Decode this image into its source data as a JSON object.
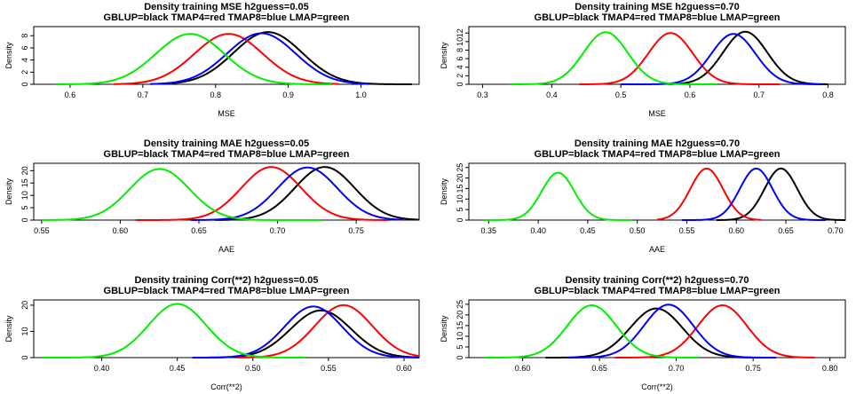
{
  "chart_data": [
    {
      "type": "line",
      "title": "Density training MSE h2guess=0.05",
      "subtitle": "GBLUP=black TMAP4=red TMAP8=blue LMAP=green",
      "xlabel": "MSE",
      "ylabel": "Density",
      "xlim": [
        0.55,
        1.08
      ],
      "ylim": [
        0,
        9.5
      ],
      "xticks": [
        0.6,
        0.7,
        0.8,
        0.9,
        1.0
      ],
      "xtick_labels": [
        "0.6",
        "0.7",
        "0.8",
        "0.9",
        "1.0"
      ],
      "yticks": [
        0,
        2,
        4,
        6,
        8
      ],
      "ytick_labels": [
        "0",
        "2",
        "4",
        "6",
        "8"
      ],
      "series": [
        {
          "name": "GBLUP",
          "color": "#000000",
          "peak_x": 0.872,
          "peak_y": 8.6,
          "sd": 0.047,
          "range": [
            0.74,
            1.07
          ]
        },
        {
          "name": "TMAP4",
          "color": "#ff0000",
          "peak_x": 0.818,
          "peak_y": 8.3,
          "sd": 0.047,
          "range": [
            0.66,
            0.97
          ]
        },
        {
          "name": "TMAP8",
          "color": "#0000ff",
          "peak_x": 0.863,
          "peak_y": 8.4,
          "sd": 0.047,
          "range": [
            0.71,
            1.01
          ]
        },
        {
          "name": "LMAP",
          "color": "#00ee00",
          "peak_x": 0.765,
          "peak_y": 8.3,
          "sd": 0.047,
          "range": [
            0.58,
            0.96
          ]
        }
      ]
    },
    {
      "type": "line",
      "title": "Density training MSE h2guess=0.70",
      "subtitle": "GBLUP=black TMAP4=red TMAP8=blue LMAP=green",
      "xlabel": "MSE",
      "ylabel": "Density",
      "xlim": [
        0.28,
        0.825
      ],
      "ylim": [
        0,
        13.5
      ],
      "xticks": [
        0.3,
        0.4,
        0.5,
        0.6,
        0.7,
        0.8
      ],
      "xtick_labels": [
        "0.3",
        "0.4",
        "0.5",
        "0.6",
        "0.7",
        "0.8"
      ],
      "yticks": [
        0,
        2,
        4,
        6,
        8,
        10,
        12
      ],
      "ytick_labels": [
        "0",
        "2",
        "4",
        "6",
        "8",
        "10",
        "12"
      ],
      "series": [
        {
          "name": "GBLUP",
          "color": "#000000",
          "peak_x": 0.68,
          "peak_y": 12.3,
          "sd": 0.032,
          "range": [
            0.57,
            0.8
          ]
        },
        {
          "name": "TMAP4",
          "color": "#ff0000",
          "peak_x": 0.572,
          "peak_y": 12.0,
          "sd": 0.032,
          "range": [
            0.44,
            0.73
          ]
        },
        {
          "name": "TMAP8",
          "color": "#0000ff",
          "peak_x": 0.663,
          "peak_y": 11.8,
          "sd": 0.032,
          "range": [
            0.5,
            0.79
          ]
        },
        {
          "name": "LMAP",
          "color": "#00ee00",
          "peak_x": 0.478,
          "peak_y": 12.2,
          "sd": 0.032,
          "range": [
            0.34,
            0.64
          ]
        }
      ]
    },
    {
      "type": "line",
      "title": "Density training MAE h2guess=0.05",
      "subtitle": "GBLUP=black TMAP4=red TMAP8=blue LMAP=green",
      "xlabel": "AAE",
      "ylabel": "Density",
      "xlim": [
        0.545,
        0.79
      ],
      "ylim": [
        0,
        23
      ],
      "xticks": [
        0.55,
        0.6,
        0.65,
        0.7,
        0.75
      ],
      "xtick_labels": [
        "0.55",
        "0.60",
        "0.65",
        "0.70",
        "0.75"
      ],
      "yticks": [
        0,
        5,
        10,
        15,
        20
      ],
      "ytick_labels": [
        "0",
        "5",
        "10",
        "15",
        "20"
      ],
      "series": [
        {
          "name": "GBLUP",
          "color": "#000000",
          "peak_x": 0.73,
          "peak_y": 21.5,
          "sd": 0.019,
          "range": [
            0.66,
            0.79
          ]
        },
        {
          "name": "TMAP4",
          "color": "#ff0000",
          "peak_x": 0.696,
          "peak_y": 21.5,
          "sd": 0.019,
          "range": [
            0.61,
            0.77
          ]
        },
        {
          "name": "TMAP8",
          "color": "#0000ff",
          "peak_x": 0.719,
          "peak_y": 21.3,
          "sd": 0.019,
          "range": [
            0.645,
            0.78
          ]
        },
        {
          "name": "LMAP",
          "color": "#00ee00",
          "peak_x": 0.625,
          "peak_y": 20.7,
          "sd": 0.019,
          "range": [
            0.55,
            0.728
          ]
        }
      ]
    },
    {
      "type": "line",
      "title": "Density training MAE h2guess=0.70",
      "subtitle": "GBLUP=black TMAP4=red TMAP8=blue LMAP=green",
      "xlabel": "AAE",
      "ylabel": "Density",
      "xlim": [
        0.33,
        0.71
      ],
      "ylim": [
        0,
        27
      ],
      "xticks": [
        0.35,
        0.4,
        0.45,
        0.5,
        0.55,
        0.6,
        0.65,
        0.7
      ],
      "xtick_labels": [
        "0.35",
        "0.40",
        "0.45",
        "0.50",
        "0.55",
        "0.60",
        "0.65",
        "0.70"
      ],
      "yticks": [
        0,
        5,
        10,
        15,
        20,
        25
      ],
      "ytick_labels": [
        "0",
        "5",
        "10",
        "15",
        "20",
        "25"
      ],
      "series": [
        {
          "name": "GBLUP",
          "color": "#000000",
          "peak_x": 0.645,
          "peak_y": 24.5,
          "sd": 0.0165,
          "range": [
            0.58,
            0.71
          ]
        },
        {
          "name": "TMAP4",
          "color": "#ff0000",
          "peak_x": 0.57,
          "peak_y": 24.5,
          "sd": 0.0165,
          "range": [
            0.52,
            0.625
          ]
        },
        {
          "name": "TMAP8",
          "color": "#0000ff",
          "peak_x": 0.62,
          "peak_y": 24.5,
          "sd": 0.0165,
          "range": [
            0.545,
            0.69
          ]
        },
        {
          "name": "LMAP",
          "color": "#00ee00",
          "peak_x": 0.42,
          "peak_y": 22.5,
          "sd": 0.0165,
          "range": [
            0.345,
            0.495
          ]
        }
      ]
    },
    {
      "type": "line",
      "title": "Density training Corr(**2) h2guess=0.05",
      "subtitle": "GBLUP=black TMAP4=red TMAP8=blue LMAP=green",
      "xlabel": "Corr(**2)",
      "ylabel": "Density",
      "xlim": [
        0.355,
        0.61
      ],
      "ylim": [
        0,
        22
      ],
      "xticks": [
        0.4,
        0.45,
        0.5,
        0.55,
        0.6
      ],
      "xtick_labels": [
        "0.40",
        "0.45",
        "0.50",
        "0.55",
        "0.60"
      ],
      "yticks": [
        0,
        10,
        20
      ],
      "ytick_labels": [
        "0",
        "10",
        "20"
      ],
      "series": [
        {
          "name": "GBLUP",
          "color": "#000000",
          "peak_x": 0.545,
          "peak_y": 18.0,
          "sd": 0.02,
          "range": [
            0.465,
            0.61
          ]
        },
        {
          "name": "TMAP4",
          "color": "#ff0000",
          "peak_x": 0.56,
          "peak_y": 20.0,
          "sd": 0.019,
          "range": [
            0.49,
            0.61
          ]
        },
        {
          "name": "TMAP8",
          "color": "#0000ff",
          "peak_x": 0.54,
          "peak_y": 19.5,
          "sd": 0.019,
          "range": [
            0.46,
            0.61
          ]
        },
        {
          "name": "LMAP",
          "color": "#00ee00",
          "peak_x": 0.45,
          "peak_y": 20.5,
          "sd": 0.019,
          "range": [
            0.36,
            0.535
          ]
        }
      ]
    },
    {
      "type": "line",
      "title": "Density training Corr(**2) h2guess=0.70",
      "subtitle": "GBLUP=black TMAP4=red TMAP8=blue LMAP=green",
      "xlabel": "Corr(**2)",
      "ylabel": "Density",
      "xlim": [
        0.565,
        0.81
      ],
      "ylim": [
        0,
        27
      ],
      "xticks": [
        0.6,
        0.65,
        0.7,
        0.75,
        0.8
      ],
      "xtick_labels": [
        "0.60",
        "0.65",
        "0.70",
        "0.75",
        "0.80"
      ],
      "yticks": [
        0,
        5,
        10,
        15,
        20,
        25
      ],
      "ytick_labels": [
        "0",
        "5",
        "10",
        "15",
        "20",
        "25"
      ],
      "series": [
        {
          "name": "GBLUP",
          "color": "#000000",
          "peak_x": 0.687,
          "peak_y": 23.0,
          "sd": 0.017,
          "range": [
            0.615,
            0.76
          ]
        },
        {
          "name": "TMAP4",
          "color": "#ff0000",
          "peak_x": 0.73,
          "peak_y": 24.5,
          "sd": 0.016,
          "range": [
            0.66,
            0.79
          ]
        },
        {
          "name": "TMAP8",
          "color": "#0000ff",
          "peak_x": 0.695,
          "peak_y": 24.8,
          "sd": 0.016,
          "range": [
            0.63,
            0.765
          ]
        },
        {
          "name": "LMAP",
          "color": "#00ee00",
          "peak_x": 0.645,
          "peak_y": 24.5,
          "sd": 0.016,
          "range": [
            0.575,
            0.715
          ]
        }
      ]
    }
  ]
}
